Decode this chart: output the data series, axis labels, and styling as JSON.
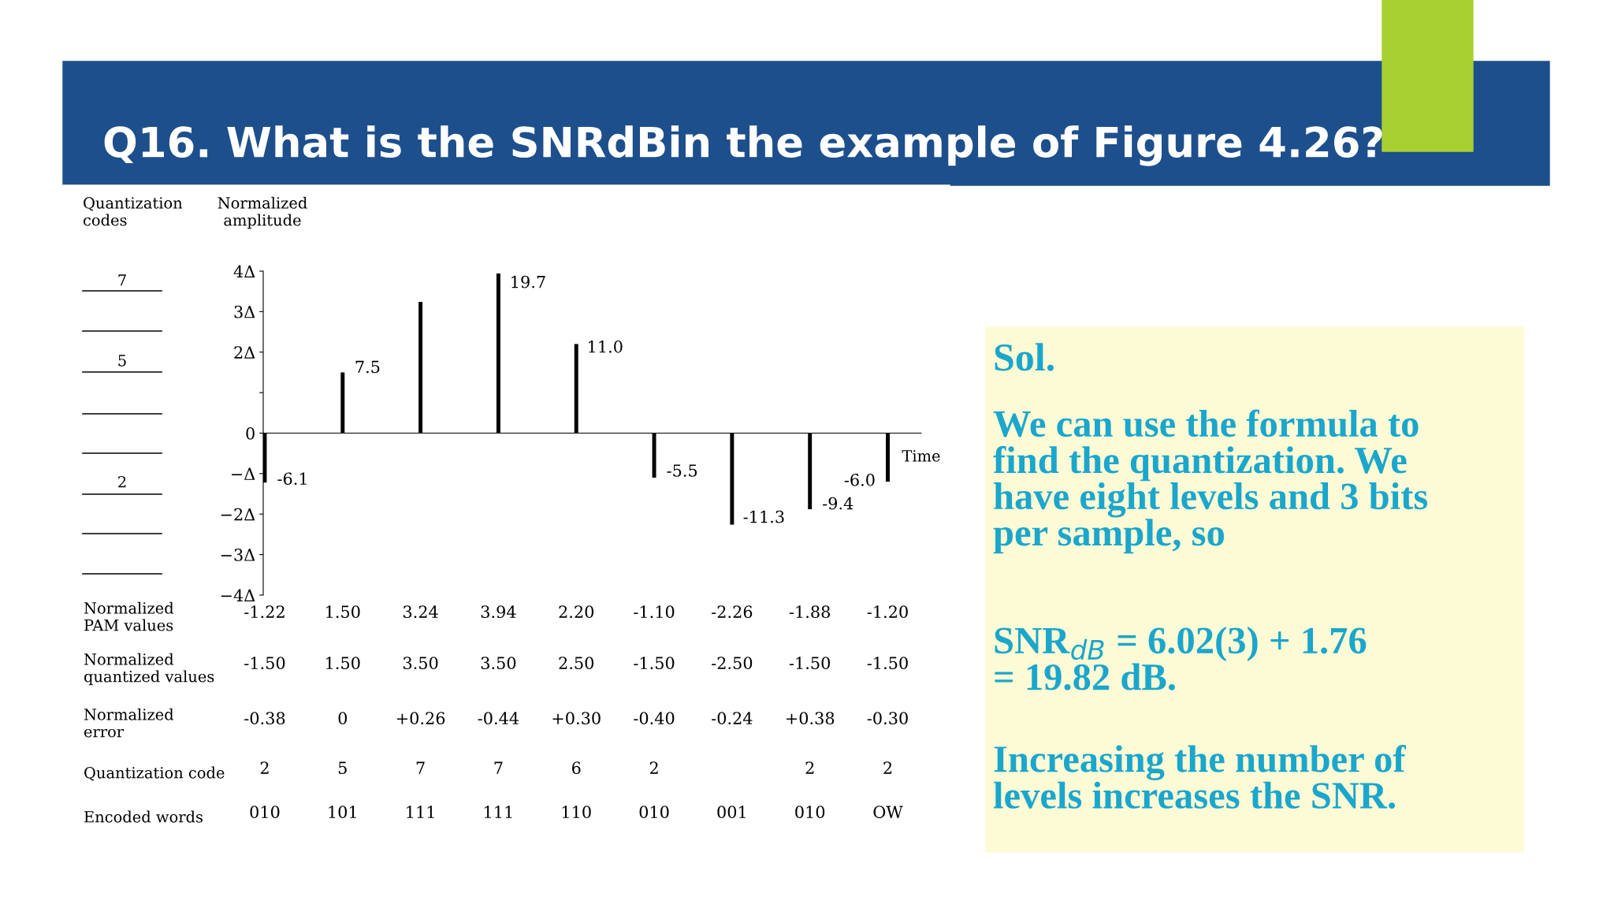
{
  "chart_data": [
    {
      "type": "bar",
      "title": "Q16. What is the SNRdBin the example of Figure 4.26?",
      "ylabel": "Normalized\namplitude",
      "xlabel": "Time",
      "categories": [
        null,
        null,
        null,
        null,
        null,
        null,
        null,
        null,
        null
      ],
      "values": [
        -1.22,
        1.5,
        3.24,
        3.94,
        2.2,
        -1.1,
        -2.26,
        -1.88,
        -1.2
      ],
      "value_labels": [
        "-1.22",
        "1.50",
        "3.24",
        "3.94",
        "2.20",
        "-1.10",
        "-2.26",
        "-1.88",
        "-1.20"
      ],
      "color": "#000000",
      "ylim": [
        -4,
        4
      ],
      "yticks": [
        {
          "value": 4,
          "label": "4Δ"
        },
        {
          "value": 3,
          "label": "3Δ"
        },
        {
          "value": 2,
          "label": "2Δ"
        },
        {
          "value": 1,
          "label": null
        },
        0,
        {
          "value": -1,
          "label": "−Δ"
        },
        {
          "value": -2,
          "label": "−2Δ"
        },
        {
          "value": -3,
          "label": "−3Δ"
        },
        {
          "value": -4,
          "label": "−4Δ"
        }
      ],
      "tick_labels": "y",
      "annotations": [
        "19.7",
        "7.5",
        "11.0",
        "-6.1",
        "-5.5",
        "-11.3",
        "-6.0",
        "-9.4",
        "Quantization\ncodes",
        "7",
        "5",
        "2",
        "Normalized\nPAM values",
        "Normalized\nquantized values",
        "-1.50\t1.50\t3.50\t3.50\t2.50\t-1.50\t-2.50\t-1.50\t-1.50",
        "Normalized\nerror",
        "-0.38\t0\t+0.26\t-0.44\t+0.30\t-0.40\t-0.24\t+0.38\t-0.30",
        "Quantization code",
        "2\t5\t7\t7\t6\t2\t\t2\t2",
        "Encoded words",
        "010\t101\t111\t111\t110\t010\t001\t010\tOW"
      ]
    },
    {
      "type": "other",
      "title": "Sol.",
      "annotations": [
        "We can use the formula to\nfind the quantization. We\nhave eight levels and 3 bits\nper sample, so",
        "SNR$_{dB}$ = 6.02(3) + 1.76\n= 19.82 dB.",
        "Increasing the number of\nlevels increases the SNR."
      ]
    }
  ]
}
